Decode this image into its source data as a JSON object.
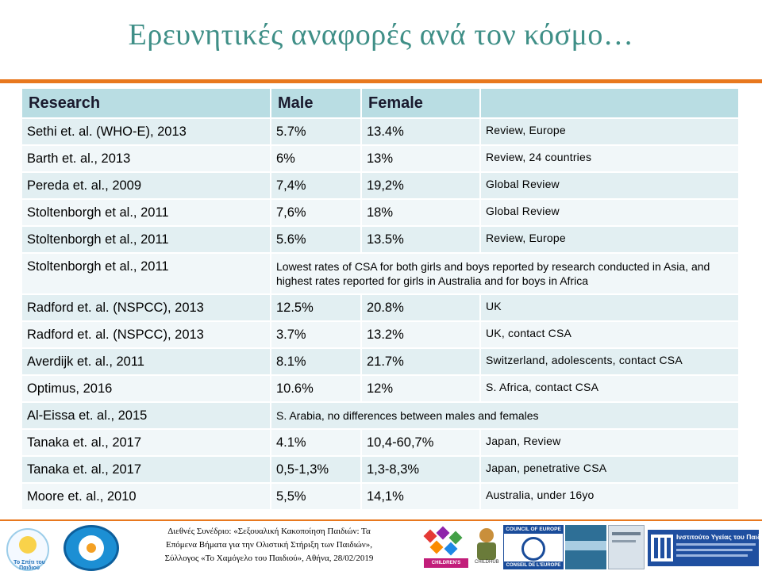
{
  "slide": {
    "title": "Ερευνητικές αναφορές ανά τον κόσμο…"
  },
  "table": {
    "headers": [
      "Research",
      "Male",
      "Female",
      ""
    ],
    "rows": [
      {
        "research": "Sethi et. al. (WHO-E), 2013",
        "male": "5.7%",
        "female": "13.4%",
        "note": "Review, Europe"
      },
      {
        "research": "Barth et. al., 2013",
        "male": "6%",
        "female": "13%",
        "note": "Review, 24 countries"
      },
      {
        "research": "Pereda et. al., 2009",
        "male": "7,4%",
        "female": "19,2%",
        "note": "Global Review"
      },
      {
        "research": "Stoltenborgh et al., 2011",
        "male": "7,6%",
        "female": "18%",
        "note": "Global Review"
      },
      {
        "research": "Stoltenborgh et al., 2011",
        "male": "5.6%",
        "female": "13.5%",
        "note": "Review, Europe"
      },
      {
        "research": "Stoltenborgh et al., 2011",
        "span_note": "Lowest rates of CSA for both girls and boys reported by research conducted in Asia, and highest rates reported for girls in Australia and for boys in Africa"
      },
      {
        "research": "Radford et. al. (NSPCC), 2013",
        "male": "12.5%",
        "female": "20.8%",
        "note": "UK"
      },
      {
        "research": "Radford et. al. (NSPCC), 2013",
        "male": "3.7%",
        "female": "13.2%",
        "note": "UK, contact CSA"
      },
      {
        "research": "Averdijk et. al., 2011",
        "male": "8.1%",
        "female": "21.7%",
        "note": "Switzerland, adolescents, contact CSA"
      },
      {
        "research": "Optimus, 2016",
        "male": "10.6%",
        "female": "12%",
        "note": "S. Africa, contact CSA"
      },
      {
        "research": "Al-Eissa et. al., 2015",
        "span_note": "S. Arabia, no differences between males and females"
      },
      {
        "research": "Tanaka et. al., 2017",
        "male": "4.1%",
        "female": "10,4-60,7%",
        "note": "Japan, Review"
      },
      {
        "research": "Tanaka et. al., 2017",
        "male": "0,5-1,3%",
        "female": "1,3-8,3%",
        "note": "Japan, penetrative CSA"
      },
      {
        "research": "Moore et. al., 2010",
        "male": "5,5%",
        "female": "14,1%",
        "note": "Australia, under 16yo"
      }
    ]
  },
  "footer": {
    "conference_line1": "Διεθνές Συνέδριο: «Σεξουαλική Κακοποίηση Παιδιών: Τα",
    "conference_line2": "Επόμενα Βήματα για την Ολιστική Στήριξη των Παιδιών»,",
    "conference_line3": "Σύλλογος «Το Χαμόγελο του Παιδιού», Αθήνα, 28/02/2019",
    "logo_smile_text": "Το Σπίτι του Παιδιού",
    "logo_rights_text": "CHILDREN'S RIGHTS",
    "logo_mascot_text": "CHILDHUB",
    "coe_top": "COUNCIL OF EUROPE",
    "coe_bottom": "CONSEIL DE L'EUROPE",
    "iyp_title": "Ινστιτούτο Υγείας του Παιδιού"
  },
  "colors": {
    "title": "#3f8f87",
    "accent_rule": "#e8781e",
    "header_fill": "#b9dde3",
    "row_odd": "#e2eff2",
    "row_even": "#f1f7f9"
  }
}
